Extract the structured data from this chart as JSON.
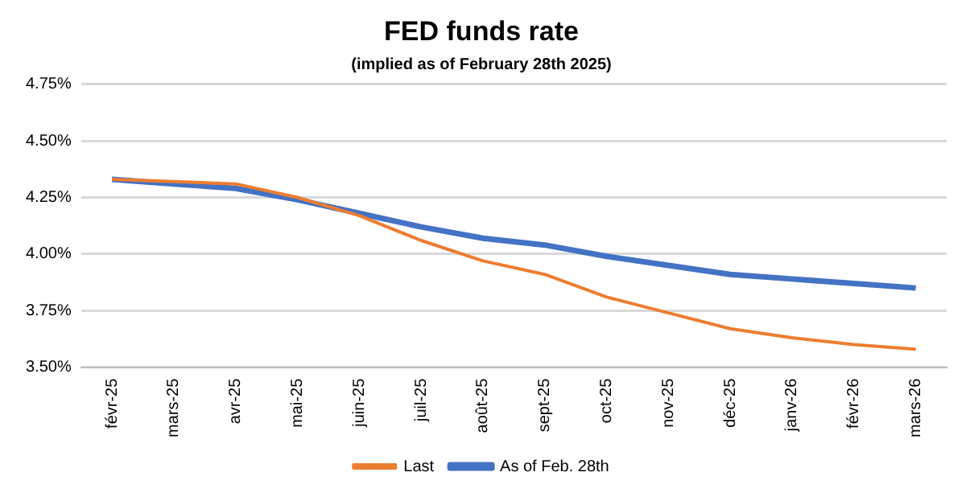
{
  "chart_data": {
    "type": "line",
    "title": "FED funds rate",
    "subtitle": "(implied as of February 28th 2025)",
    "categories": [
      "févr-25",
      "mars-25",
      "avr-25",
      "mai-25",
      "juin-25",
      "juil-25",
      "août-25",
      "sept-25",
      "oct-25",
      "nov-25",
      "déc-25",
      "janv-26",
      "févr-26",
      "mars-26"
    ],
    "series": [
      {
        "name": "Last",
        "color": "#ed7d31",
        "values": [
          4.33,
          4.32,
          4.31,
          4.25,
          4.17,
          4.06,
          3.97,
          3.91,
          3.81,
          3.74,
          3.67,
          3.63,
          3.6,
          3.58
        ]
      },
      {
        "name": "As of Feb. 28th",
        "color": "#4472c4",
        "values": [
          4.33,
          4.31,
          4.29,
          4.24,
          4.18,
          4.12,
          4.07,
          4.04,
          3.99,
          3.95,
          3.91,
          3.89,
          3.87,
          3.85
        ]
      }
    ],
    "ylim": [
      3.5,
      4.75
    ],
    "yticks": [
      {
        "value": 3.5,
        "label": "3.50%"
      },
      {
        "value": 3.75,
        "label": "3.75%"
      },
      {
        "value": 4,
        "label": "4.00%"
      },
      {
        "value": 4.25,
        "label": "4.25%"
      },
      {
        "value": 4.5,
        "label": "4.50%"
      },
      {
        "value": 4.75,
        "label": "4.75%"
      }
    ],
    "grid": "y",
    "legend": "bottom",
    "marker": "none",
    "line_style": "solid"
  }
}
